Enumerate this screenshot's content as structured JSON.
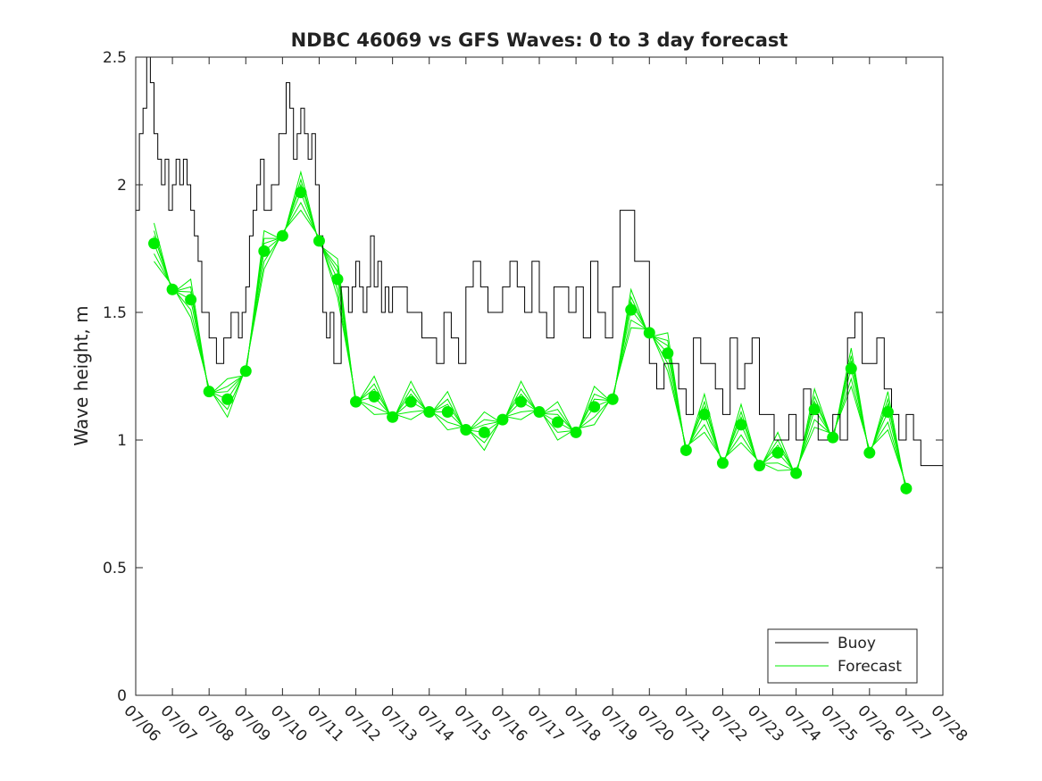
{
  "chart_data": {
    "type": "line",
    "title": "NDBC 46069 vs GFS Waves: 0 to 3 day forecast",
    "xlabel": "",
    "ylabel": "Wave height, m",
    "xlim_days": [
      0,
      22
    ],
    "ylim": [
      0,
      2.5
    ],
    "grid": false,
    "legend_position": "bottom-right",
    "x_tick_labels": [
      "07/06",
      "07/07",
      "07/08",
      "07/09",
      "07/10",
      "07/11",
      "07/12",
      "07/13",
      "07/14",
      "07/15",
      "07/16",
      "07/17",
      "07/18",
      "07/19",
      "07/20",
      "07/21",
      "07/22",
      "07/23",
      "07/24",
      "07/25",
      "07/26",
      "07/27",
      "07/28"
    ],
    "y_ticks": [
      0,
      0.5,
      1,
      1.5,
      2,
      2.5
    ],
    "y_tick_labels": [
      "0",
      "0.5",
      "1",
      "1.5",
      "2",
      "2.5"
    ],
    "colors": {
      "buoy": "#000000",
      "forecast": "#00ee00"
    },
    "legend": [
      {
        "label": "Buoy",
        "color": "#000000"
      },
      {
        "label": "Forecast",
        "color": "#00ee00"
      }
    ],
    "buoy": {
      "name": "Buoy",
      "x": [
        0,
        0.1,
        0.2,
        0.3,
        0.4,
        0.5,
        0.6,
        0.7,
        0.8,
        0.9,
        1.0,
        1.1,
        1.2,
        1.3,
        1.4,
        1.5,
        1.6,
        1.7,
        1.8,
        1.9,
        2.0,
        2.1,
        2.2,
        2.3,
        2.4,
        2.5,
        2.6,
        2.7,
        2.8,
        2.9,
        3.0,
        3.1,
        3.2,
        3.3,
        3.4,
        3.5,
        3.6,
        3.7,
        3.8,
        3.9,
        4.0,
        4.1,
        4.2,
        4.3,
        4.4,
        4.5,
        4.6,
        4.7,
        4.8,
        4.9,
        5.0,
        5.1,
        5.2,
        5.3,
        5.4,
        5.5,
        5.6,
        5.7,
        5.8,
        5.9,
        6.0,
        6.1,
        6.2,
        6.3,
        6.4,
        6.5,
        6.6,
        6.7,
        6.8,
        6.9,
        7.0,
        7.2,
        7.4,
        7.6,
        7.8,
        8.0,
        8.2,
        8.4,
        8.6,
        8.8,
        9.0,
        9.2,
        9.4,
        9.6,
        9.8,
        10.0,
        10.2,
        10.4,
        10.6,
        10.8,
        11.0,
        11.2,
        11.4,
        11.6,
        11.8,
        12.0,
        12.2,
        12.4,
        12.6,
        12.8,
        13.0,
        13.2,
        13.4,
        13.6,
        13.8,
        14.0,
        14.2,
        14.4,
        14.6,
        14.8,
        15.0,
        15.2,
        15.4,
        15.6,
        15.8,
        16.0,
        16.2,
        16.4,
        16.6,
        16.8,
        17.0,
        17.2,
        17.4,
        17.6,
        17.8,
        18.0,
        18.2,
        18.4,
        18.6,
        18.8,
        19.0,
        19.2,
        19.4,
        19.6,
        19.8,
        20.0,
        20.2,
        20.4,
        20.6,
        20.8,
        21.0,
        21.2,
        21.4,
        21.6,
        21.8,
        22.0
      ],
      "y": [
        1.9,
        2.2,
        2.3,
        2.5,
        2.4,
        2.2,
        2.1,
        2.0,
        2.1,
        1.9,
        2.0,
        2.1,
        2.0,
        2.1,
        2.0,
        1.9,
        1.8,
        1.7,
        1.5,
        1.5,
        1.4,
        1.4,
        1.3,
        1.3,
        1.4,
        1.4,
        1.5,
        1.5,
        1.4,
        1.5,
        1.6,
        1.8,
        1.9,
        2.0,
        2.1,
        1.9,
        1.9,
        2.0,
        2.0,
        2.2,
        2.2,
        2.4,
        2.3,
        2.1,
        2.2,
        2.3,
        2.2,
        2.1,
        2.2,
        2.0,
        1.8,
        1.5,
        1.4,
        1.5,
        1.3,
        1.3,
        1.6,
        1.6,
        1.5,
        1.6,
        1.7,
        1.6,
        1.5,
        1.6,
        1.8,
        1.6,
        1.7,
        1.5,
        1.6,
        1.5,
        1.6,
        1.6,
        1.5,
        1.5,
        1.4,
        1.4,
        1.3,
        1.5,
        1.4,
        1.3,
        1.6,
        1.7,
        1.6,
        1.5,
        1.5,
        1.6,
        1.7,
        1.6,
        1.5,
        1.7,
        1.5,
        1.4,
        1.6,
        1.6,
        1.5,
        1.6,
        1.4,
        1.7,
        1.5,
        1.4,
        1.6,
        1.9,
        1.9,
        1.7,
        1.7,
        1.3,
        1.2,
        1.3,
        1.3,
        1.2,
        1.1,
        1.4,
        1.3,
        1.3,
        1.2,
        1.1,
        1.4,
        1.2,
        1.3,
        1.4,
        1.1,
        1.1,
        1.0,
        1.0,
        1.1,
        1.0,
        1.2,
        1.1,
        1.0,
        1.0,
        1.1,
        1.0,
        1.4,
        1.5,
        1.3,
        1.3,
        1.4,
        1.2,
        1.1,
        1.0,
        1.1,
        1.0,
        0.9,
        0.9,
        0.9,
        1.0
      ]
    },
    "forecast_points": {
      "name": "Forecast",
      "x": [
        0.5,
        1.0,
        1.5,
        2.0,
        2.5,
        3.0,
        3.5,
        4.0,
        4.5,
        5.0,
        5.5,
        6.0,
        6.5,
        7.0,
        7.5,
        8.0,
        8.5,
        9.0,
        9.5,
        10.0,
        10.5,
        11.0,
        11.5,
        12.0,
        12.5,
        13.0,
        13.5,
        14.0,
        14.5,
        15.0,
        15.5,
        16.0,
        16.5,
        17.0,
        17.5,
        18.0,
        18.5,
        19.0,
        19.5,
        20.0,
        20.5,
        21.0
      ],
      "y": [
        1.77,
        1.59,
        1.55,
        1.19,
        1.16,
        1.27,
        1.74,
        1.8,
        1.97,
        1.78,
        1.63,
        1.15,
        1.17,
        1.09,
        1.15,
        1.11,
        1.11,
        1.04,
        1.03,
        1.08,
        1.15,
        1.11,
        1.07,
        1.03,
        1.13,
        1.16,
        1.51,
        1.42,
        1.34,
        0.96,
        1.1,
        0.91,
        1.06,
        0.9,
        0.95,
        0.87,
        1.12,
        1.01,
        1.28,
        0.95,
        1.11,
        0.81
      ]
    }
  }
}
